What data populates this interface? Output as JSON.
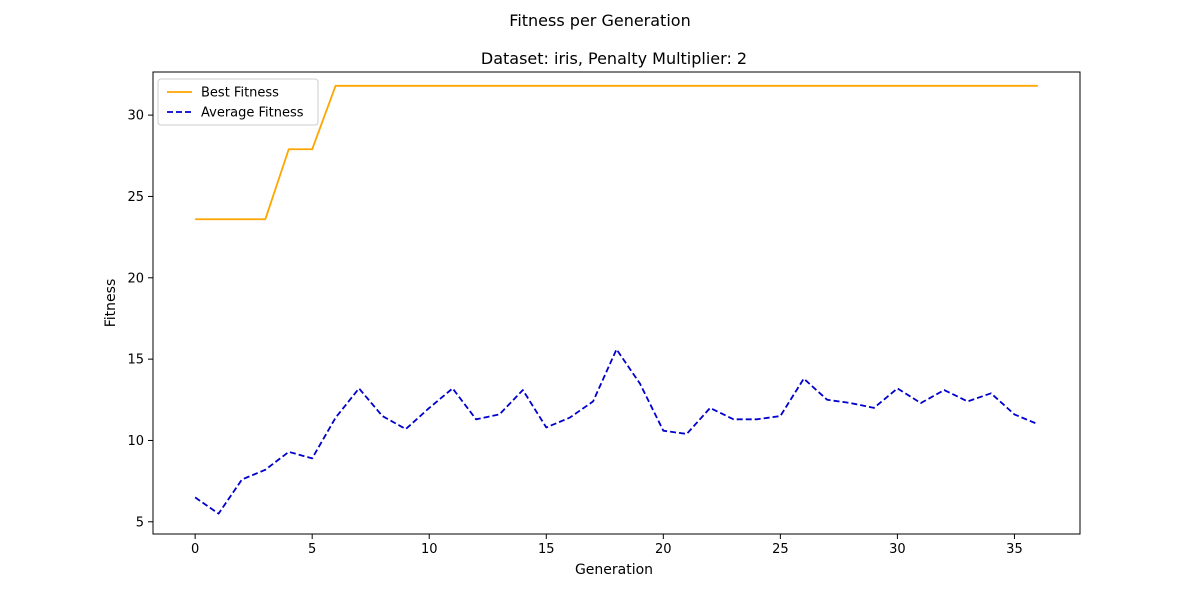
{
  "figure": {
    "suptitle": "Fitness per Generation"
  },
  "chart_data": {
    "type": "line",
    "title": "Dataset: iris, Penalty Multiplier: 2",
    "xlabel": "Generation",
    "ylabel": "Fitness",
    "xlim": [
      -1.8,
      37.8
    ],
    "ylim": [
      4.25,
      32.65
    ],
    "xticks": [
      0,
      5,
      10,
      15,
      20,
      25,
      30,
      35
    ],
    "yticks": [
      5,
      10,
      15,
      20,
      25,
      30
    ],
    "grid": false,
    "legend_position": "top-left",
    "x": [
      0,
      1,
      2,
      3,
      4,
      5,
      6,
      7,
      8,
      9,
      10,
      11,
      12,
      13,
      14,
      15,
      16,
      17,
      18,
      19,
      20,
      21,
      22,
      23,
      24,
      25,
      26,
      27,
      28,
      29,
      30,
      31,
      32,
      33,
      34,
      35,
      36
    ],
    "series": [
      {
        "name": "Best Fitness",
        "color": "#FFA500",
        "style": "solid",
        "values": [
          23.6,
          23.6,
          23.6,
          23.6,
          27.9,
          27.9,
          31.8,
          31.8,
          31.8,
          31.8,
          31.8,
          31.8,
          31.8,
          31.8,
          31.8,
          31.8,
          31.8,
          31.8,
          31.8,
          31.8,
          31.8,
          31.8,
          31.8,
          31.8,
          31.8,
          31.8,
          31.8,
          31.8,
          31.8,
          31.8,
          31.8,
          31.8,
          31.8,
          31.8,
          31.8,
          31.8,
          31.8
        ]
      },
      {
        "name": "Average Fitness",
        "color": "#0000CC",
        "style": "dashed",
        "values": [
          6.5,
          5.5,
          7.6,
          8.2,
          9.3,
          8.9,
          11.4,
          13.2,
          11.5,
          10.7,
          12.0,
          13.2,
          11.3,
          11.6,
          13.1,
          10.8,
          11.4,
          12.4,
          15.6,
          13.5,
          10.6,
          10.4,
          12.0,
          11.3,
          11.3,
          11.5,
          13.8,
          12.5,
          12.3,
          12.0,
          13.2,
          12.3,
          13.1,
          12.4,
          12.9,
          11.6,
          11.0
        ]
      }
    ]
  }
}
